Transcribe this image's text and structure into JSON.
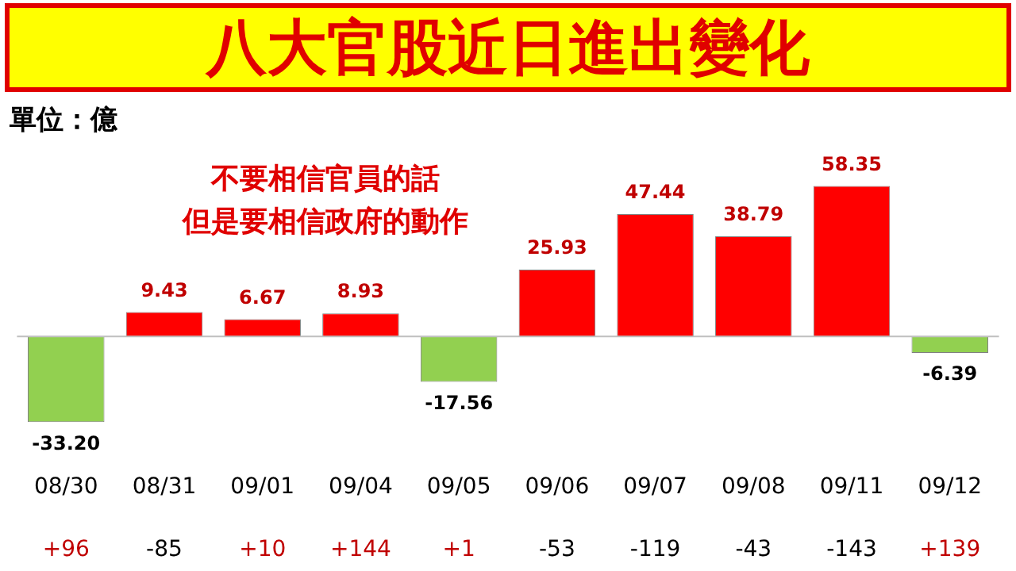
{
  "chart_data": {
    "type": "bar",
    "title": "八大官股近日進出變化",
    "categories": [
      "08/30",
      "08/31",
      "09/01",
      "09/04",
      "09/05",
      "09/06",
      "09/07",
      "09/08",
      "09/11",
      "09/12"
    ],
    "values": [
      -33.2,
      9.43,
      6.67,
      8.93,
      -17.56,
      25.93,
      47.44,
      38.79,
      58.35,
      -6.39
    ],
    "value_labels": [
      "-33.20",
      "9.43",
      "6.67",
      "8.93",
      "-17.56",
      "25.93",
      "47.44",
      "38.79",
      "58.35",
      "-6.39"
    ],
    "colors": [
      "#92d050",
      "#ff0000",
      "#ff0000",
      "#ff0000",
      "#92d050",
      "#ff0000",
      "#ff0000",
      "#ff0000",
      "#ff0000",
      "#92d050"
    ],
    "tick_labels": "x",
    "grid": false,
    "legend": false,
    "ref_lines": [
      {
        "axis": "y",
        "value": 0,
        "label": null,
        "color": "#bfbfbf"
      }
    ],
    "annotations": [
      "單位：億",
      "不要相信官員的話",
      "但是要相信政府的動作",
      "+96",
      "-85",
      "+10",
      "+144",
      "+1",
      "-53",
      "-119",
      "-43",
      "-143",
      "+139"
    ]
  }
}
